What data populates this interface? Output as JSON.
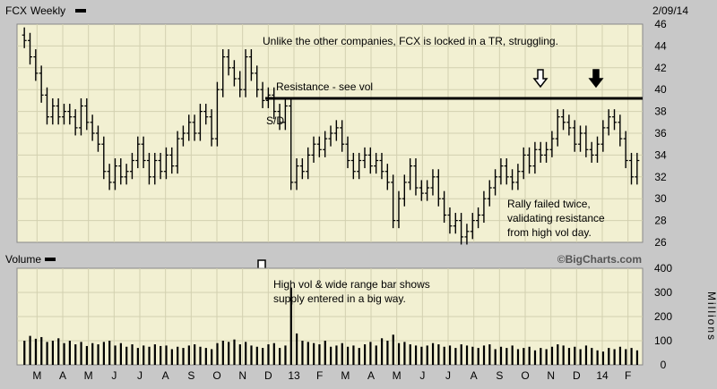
{
  "header": {
    "symbol": "FCX",
    "period": "Weekly",
    "date": "2/09/14"
  },
  "volume_header": {
    "label": "Volume",
    "watermark": "©BigCharts.com"
  },
  "annotations": {
    "top_note": "Unlike the other companies, FCX is locked in a TR, struggling.",
    "resistance": "Resistance - see vol",
    "sd": "S/D",
    "rally_lines": [
      "Rally failed twice,",
      "validating resistance",
      "from high vol day."
    ],
    "vol_lines": [
      "High vol & wide range bar shows",
      "supply entered in a big way."
    ]
  },
  "volume_unit": "Millions",
  "colors": {
    "panel_bg": "#f2f0d2",
    "frame_bg": "#c8c8c8",
    "grid": "#d2d0b0",
    "bars": "#000000"
  },
  "chart_data": [
    {
      "type": "bar",
      "subtype": "ohlc",
      "ylim": [
        26,
        46
      ],
      "yticks": [
        26,
        28,
        30,
        32,
        34,
        36,
        38,
        40,
        42,
        44,
        46
      ],
      "xticks": [
        "M",
        "A",
        "M",
        "J",
        "J",
        "A",
        "S",
        "O",
        "N",
        "D",
        "13",
        "F",
        "M",
        "A",
        "M",
        "J",
        "J",
        "A",
        "S",
        "O",
        "N",
        "D",
        "14",
        "F"
      ],
      "resistance_level": 39.2,
      "closes": [
        44.5,
        43.0,
        41.5,
        39.5,
        37.5,
        38.5,
        37.5,
        38.0,
        37.5,
        36.5,
        38.5,
        37.0,
        36.0,
        35.0,
        32.5,
        31.5,
        33.0,
        32.0,
        32.5,
        33.5,
        35.0,
        33.5,
        32.0,
        33.5,
        32.5,
        34.0,
        33.0,
        35.5,
        36.0,
        37.0,
        36.0,
        38.0,
        37.5,
        35.5,
        40.0,
        43.0,
        42.0,
        41.0,
        40.0,
        43.0,
        41.5,
        40.0,
        39.0,
        39.5,
        38.0,
        37.0,
        38.5,
        31.5,
        33.0,
        32.5,
        34.0,
        35.0,
        34.5,
        35.5,
        36.0,
        36.5,
        35.0,
        33.5,
        32.5,
        33.5,
        34.0,
        33.0,
        33.5,
        32.5,
        31.5,
        28.0,
        30.0,
        31.5,
        33.0,
        31.0,
        30.5,
        31.0,
        32.0,
        30.0,
        28.5,
        27.5,
        28.0,
        26.5,
        27.0,
        28.0,
        28.5,
        30.0,
        31.0,
        32.0,
        33.0,
        32.0,
        31.5,
        32.5,
        34.0,
        33.0,
        34.5,
        34.0,
        34.5,
        35.5,
        37.5,
        37.0,
        36.5,
        35.0,
        36.0,
        34.5,
        34.0,
        35.0,
        36.5,
        37.5,
        37.0,
        35.5,
        33.5,
        32.0,
        33.5
      ]
    },
    {
      "type": "bar",
      "ylabel": "Millions",
      "ylim": [
        0,
        400
      ],
      "yticks": [
        0,
        100,
        200,
        300,
        400
      ],
      "values": [
        100,
        120,
        108,
        115,
        95,
        100,
        110,
        90,
        100,
        85,
        95,
        78,
        90,
        85,
        95,
        100,
        80,
        90,
        75,
        85,
        70,
        80,
        75,
        85,
        78,
        80,
        65,
        75,
        70,
        80,
        85,
        75,
        70,
        65,
        90,
        100,
        95,
        105,
        85,
        95,
        80,
        75,
        70,
        85,
        90,
        70,
        80,
        320,
        130,
        100,
        95,
        90,
        85,
        100,
        75,
        80,
        90,
        75,
        80,
        70,
        85,
        95,
        80,
        110,
        100,
        125,
        90,
        95,
        85,
        80,
        75,
        80,
        90,
        85,
        75,
        80,
        70,
        85,
        80,
        75,
        70,
        80,
        85,
        65,
        75,
        70,
        80,
        65,
        70,
        75,
        60,
        70,
        65,
        75,
        85,
        80,
        70,
        75,
        65,
        80,
        70,
        60,
        55,
        70,
        65,
        75,
        65,
        70,
        60
      ]
    }
  ]
}
